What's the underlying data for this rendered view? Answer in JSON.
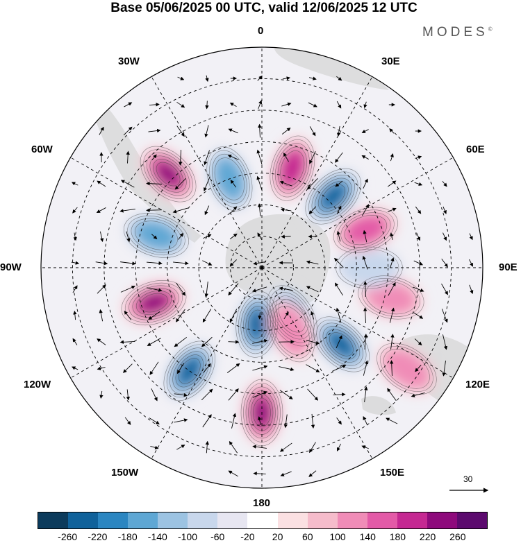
{
  "title": "Base 05/06/2025 00 UTC, valid 12/06/2025 12 UTC",
  "logo": "MODES",
  "logo_mark": "©",
  "lon_labels": {
    "l0": "0",
    "l30e": "30E",
    "l60e": "60E",
    "l90e": "90E",
    "l120e": "120E",
    "l150e": "150E",
    "l180": "180",
    "l150w": "150W",
    "l120w": "120W",
    "l90w": "90W",
    "l60w": "60W",
    "l30w": "30W"
  },
  "vector_key_label": "30",
  "colorbar": {
    "colors": [
      "#0c3b5c",
      "#10629b",
      "#2b86c1",
      "#5ea7d4",
      "#9cc3e2",
      "#c8d7ec",
      "#e7e6f1",
      "#ffffff",
      "#fbe0e2",
      "#f6bccb",
      "#f08cb7",
      "#e35aa7",
      "#c52892",
      "#8e0a7c",
      "#5c0a6e"
    ],
    "ticks": [
      "-260",
      "-220",
      "-180",
      "-140",
      "-100",
      "-60",
      "-20",
      "20",
      "60",
      "100",
      "140",
      "180",
      "220",
      "260"
    ]
  },
  "anomaly_cells": [
    {
      "lon": 148,
      "lat": -72,
      "v": -200
    },
    {
      "lon": 134,
      "lat": -55,
      "v": -220
    },
    {
      "lon": 103,
      "lat": -48,
      "v": 120
    },
    {
      "lon": 90,
      "lat": -56,
      "v": -80
    },
    {
      "lon": 70,
      "lat": -55,
      "v": 170
    },
    {
      "lon": 45,
      "lat": -58,
      "v": -230
    },
    {
      "lon": 17,
      "lat": -57,
      "v": 210
    },
    {
      "lon": -20,
      "lat": -60,
      "v": -150
    },
    {
      "lon": -45,
      "lat": -48,
      "v": 250
    },
    {
      "lon": -73,
      "lat": -55,
      "v": -150
    },
    {
      "lon": -108,
      "lat": -54,
      "v": 230
    },
    {
      "lon": -145,
      "lat": -50,
      "v": -220
    },
    {
      "lon": 180,
      "lat": -44,
      "v": 220
    },
    {
      "lon": -175,
      "lat": -72,
      "v": -220
    },
    {
      "lon": 155,
      "lat": -68,
      "v": 100
    },
    {
      "lon": 125,
      "lat": -34,
      "v": 120
    }
  ]
}
